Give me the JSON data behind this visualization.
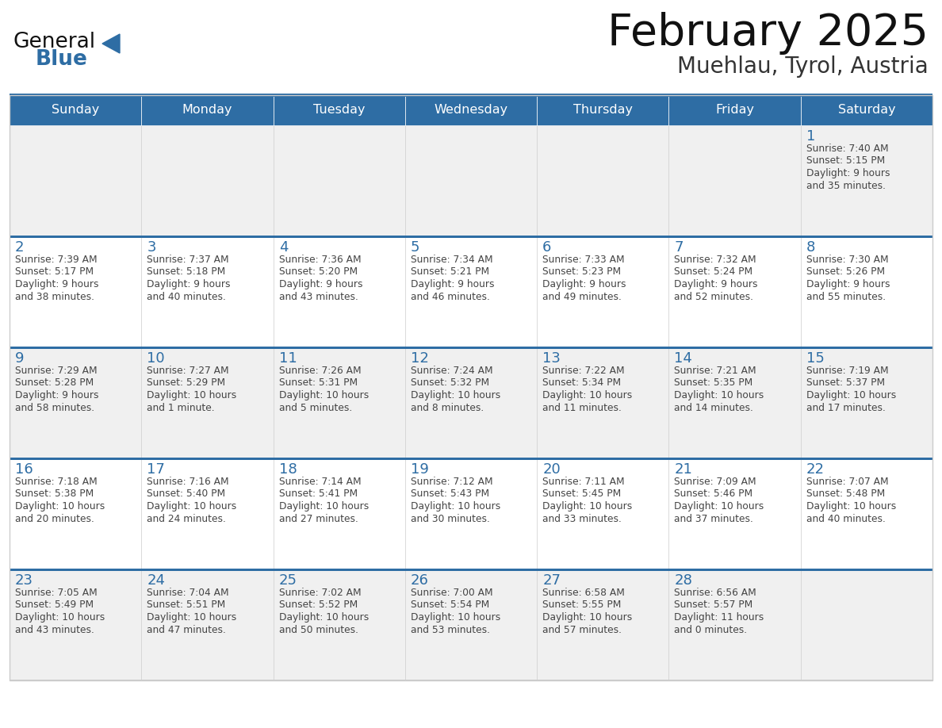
{
  "title": "February 2025",
  "subtitle": "Muehlau, Tyrol, Austria",
  "header_bg": "#2E6DA4",
  "header_text_color": "#FFFFFF",
  "cell_bg_odd": "#F0F0F0",
  "cell_bg_even": "#FFFFFF",
  "row_border_color": "#2E6DA4",
  "cell_border_color": "#CCCCCC",
  "day_number_color": "#2E6DA4",
  "cell_text_color": "#444444",
  "days_of_week": [
    "Sunday",
    "Monday",
    "Tuesday",
    "Wednesday",
    "Thursday",
    "Friday",
    "Saturday"
  ],
  "weeks": [
    [
      null,
      null,
      null,
      null,
      null,
      null,
      1
    ],
    [
      2,
      3,
      4,
      5,
      6,
      7,
      8
    ],
    [
      9,
      10,
      11,
      12,
      13,
      14,
      15
    ],
    [
      16,
      17,
      18,
      19,
      20,
      21,
      22
    ],
    [
      23,
      24,
      25,
      26,
      27,
      28,
      null
    ]
  ],
  "cell_data": {
    "1": {
      "sunrise": "7:40 AM",
      "sunset": "5:15 PM",
      "daylight_l1": "Daylight: 9 hours",
      "daylight_l2": "and 35 minutes."
    },
    "2": {
      "sunrise": "7:39 AM",
      "sunset": "5:17 PM",
      "daylight_l1": "Daylight: 9 hours",
      "daylight_l2": "and 38 minutes."
    },
    "3": {
      "sunrise": "7:37 AM",
      "sunset": "5:18 PM",
      "daylight_l1": "Daylight: 9 hours",
      "daylight_l2": "and 40 minutes."
    },
    "4": {
      "sunrise": "7:36 AM",
      "sunset": "5:20 PM",
      "daylight_l1": "Daylight: 9 hours",
      "daylight_l2": "and 43 minutes."
    },
    "5": {
      "sunrise": "7:34 AM",
      "sunset": "5:21 PM",
      "daylight_l1": "Daylight: 9 hours",
      "daylight_l2": "and 46 minutes."
    },
    "6": {
      "sunrise": "7:33 AM",
      "sunset": "5:23 PM",
      "daylight_l1": "Daylight: 9 hours",
      "daylight_l2": "and 49 minutes."
    },
    "7": {
      "sunrise": "7:32 AM",
      "sunset": "5:24 PM",
      "daylight_l1": "Daylight: 9 hours",
      "daylight_l2": "and 52 minutes."
    },
    "8": {
      "sunrise": "7:30 AM",
      "sunset": "5:26 PM",
      "daylight_l1": "Daylight: 9 hours",
      "daylight_l2": "and 55 minutes."
    },
    "9": {
      "sunrise": "7:29 AM",
      "sunset": "5:28 PM",
      "daylight_l1": "Daylight: 9 hours",
      "daylight_l2": "and 58 minutes."
    },
    "10": {
      "sunrise": "7:27 AM",
      "sunset": "5:29 PM",
      "daylight_l1": "Daylight: 10 hours",
      "daylight_l2": "and 1 minute."
    },
    "11": {
      "sunrise": "7:26 AM",
      "sunset": "5:31 PM",
      "daylight_l1": "Daylight: 10 hours",
      "daylight_l2": "and 5 minutes."
    },
    "12": {
      "sunrise": "7:24 AM",
      "sunset": "5:32 PM",
      "daylight_l1": "Daylight: 10 hours",
      "daylight_l2": "and 8 minutes."
    },
    "13": {
      "sunrise": "7:22 AM",
      "sunset": "5:34 PM",
      "daylight_l1": "Daylight: 10 hours",
      "daylight_l2": "and 11 minutes."
    },
    "14": {
      "sunrise": "7:21 AM",
      "sunset": "5:35 PM",
      "daylight_l1": "Daylight: 10 hours",
      "daylight_l2": "and 14 minutes."
    },
    "15": {
      "sunrise": "7:19 AM",
      "sunset": "5:37 PM",
      "daylight_l1": "Daylight: 10 hours",
      "daylight_l2": "and 17 minutes."
    },
    "16": {
      "sunrise": "7:18 AM",
      "sunset": "5:38 PM",
      "daylight_l1": "Daylight: 10 hours",
      "daylight_l2": "and 20 minutes."
    },
    "17": {
      "sunrise": "7:16 AM",
      "sunset": "5:40 PM",
      "daylight_l1": "Daylight: 10 hours",
      "daylight_l2": "and 24 minutes."
    },
    "18": {
      "sunrise": "7:14 AM",
      "sunset": "5:41 PM",
      "daylight_l1": "Daylight: 10 hours",
      "daylight_l2": "and 27 minutes."
    },
    "19": {
      "sunrise": "7:12 AM",
      "sunset": "5:43 PM",
      "daylight_l1": "Daylight: 10 hours",
      "daylight_l2": "and 30 minutes."
    },
    "20": {
      "sunrise": "7:11 AM",
      "sunset": "5:45 PM",
      "daylight_l1": "Daylight: 10 hours",
      "daylight_l2": "and 33 minutes."
    },
    "21": {
      "sunrise": "7:09 AM",
      "sunset": "5:46 PM",
      "daylight_l1": "Daylight: 10 hours",
      "daylight_l2": "and 37 minutes."
    },
    "22": {
      "sunrise": "7:07 AM",
      "sunset": "5:48 PM",
      "daylight_l1": "Daylight: 10 hours",
      "daylight_l2": "and 40 minutes."
    },
    "23": {
      "sunrise": "7:05 AM",
      "sunset": "5:49 PM",
      "daylight_l1": "Daylight: 10 hours",
      "daylight_l2": "and 43 minutes."
    },
    "24": {
      "sunrise": "7:04 AM",
      "sunset": "5:51 PM",
      "daylight_l1": "Daylight: 10 hours",
      "daylight_l2": "and 47 minutes."
    },
    "25": {
      "sunrise": "7:02 AM",
      "sunset": "5:52 PM",
      "daylight_l1": "Daylight: 10 hours",
      "daylight_l2": "and 50 minutes."
    },
    "26": {
      "sunrise": "7:00 AM",
      "sunset": "5:54 PM",
      "daylight_l1": "Daylight: 10 hours",
      "daylight_l2": "and 53 minutes."
    },
    "27": {
      "sunrise": "6:58 AM",
      "sunset": "5:55 PM",
      "daylight_l1": "Daylight: 10 hours",
      "daylight_l2": "and 57 minutes."
    },
    "28": {
      "sunrise": "6:56 AM",
      "sunset": "5:57 PM",
      "daylight_l1": "Daylight: 11 hours",
      "daylight_l2": "and 0 minutes."
    }
  },
  "logo_general_color": "#111111",
  "logo_blue_color": "#2E6DA4",
  "logo_triangle_color": "#2E6DA4"
}
